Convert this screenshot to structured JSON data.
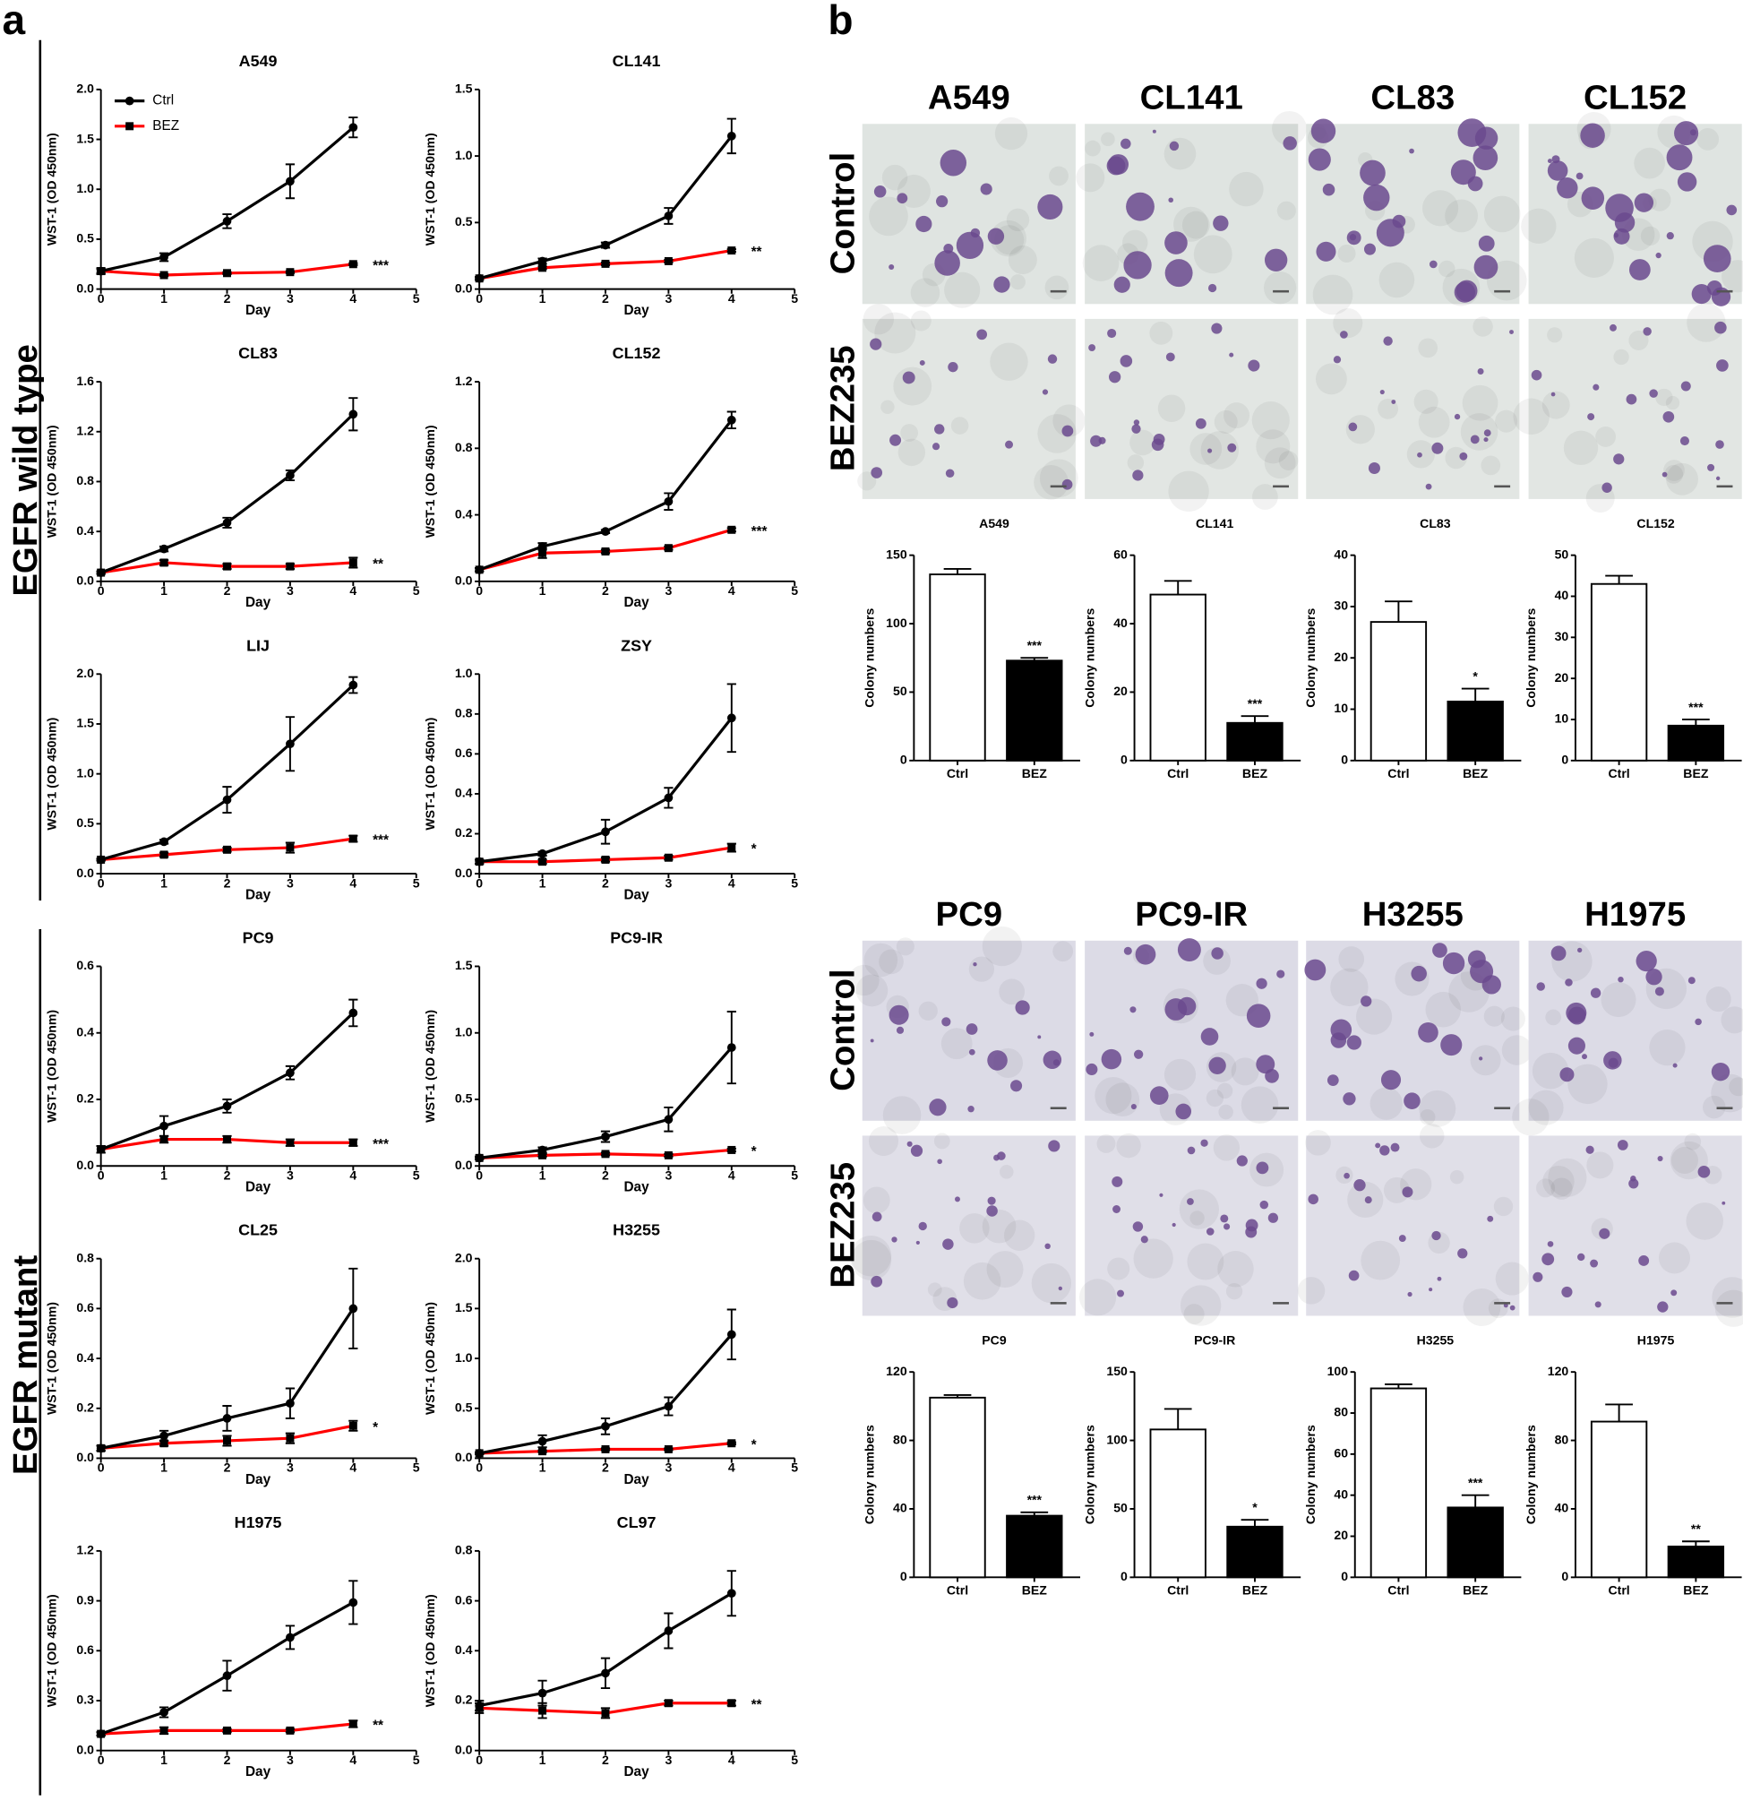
{
  "panel_a": {
    "label": "a",
    "groups": [
      "EGFR wild type",
      "EGFR mutant"
    ]
  },
  "panel_b": {
    "label": "b",
    "row_labels": [
      "Control",
      "BEZ235"
    ],
    "image_titles": [
      [
        "A549",
        "CL141",
        "CL83",
        "CL152"
      ],
      [
        "PC9",
        "PC9-IR",
        "H3255",
        "H1975"
      ]
    ]
  },
  "chart_data": [
    {
      "type": "line",
      "title": "A549",
      "xlabel": "Day",
      "ylabel": "WST-1 (OD 450nm)",
      "x": [
        0,
        1,
        2,
        3,
        4
      ],
      "xlim": [
        0,
        5
      ],
      "xticks": [
        0,
        1,
        2,
        3,
        4,
        5
      ],
      "ylim": [
        0,
        2
      ],
      "yticks": [
        {
          "value": 0,
          "label": "0.0"
        },
        0.5,
        {
          "value": 1,
          "label": "1.0"
        },
        1.5,
        {
          "value": 2,
          "label": "2.0"
        }
      ],
      "annotation": "***",
      "series": [
        {
          "name": "Ctrl",
          "color": "#000000",
          "marker": "circle",
          "values": [
            0.18,
            0.32,
            0.68,
            1.08,
            1.62
          ],
          "errors": [
            0.03,
            0.04,
            0.07,
            0.17,
            0.1
          ]
        },
        {
          "name": "BEZ",
          "color": "#ff0000",
          "marker": "square",
          "values": [
            0.18,
            0.14,
            0.16,
            0.17,
            0.25
          ],
          "errors": [
            0.02,
            0.01,
            0.01,
            0.01,
            0.01
          ]
        }
      ]
    },
    {
      "type": "line",
      "title": "CL141",
      "xlabel": "Day",
      "ylabel": "WST-1 (OD 450nm)",
      "x": [
        0,
        1,
        2,
        3,
        4
      ],
      "xlim": [
        0,
        5
      ],
      "xticks": [
        0,
        1,
        2,
        3,
        4,
        5
      ],
      "ylim": [
        0,
        1.5
      ],
      "yticks": [
        {
          "value": 0,
          "label": "0.0"
        },
        0.5,
        {
          "value": 1,
          "label": "1.0"
        },
        1.5
      ],
      "annotation": "**",
      "series": [
        {
          "color": "#000000",
          "marker": "circle",
          "values": [
            0.08,
            0.21,
            0.33,
            0.55,
            1.15
          ],
          "errors": [
            0.01,
            0.02,
            0.02,
            0.06,
            0.13
          ]
        },
        {
          "color": "#ff0000",
          "marker": "square",
          "values": [
            0.08,
            0.16,
            0.19,
            0.21,
            0.29
          ],
          "errors": [
            0.01,
            0.01,
            0.01,
            0.01,
            0.01
          ]
        }
      ]
    },
    {
      "type": "line",
      "title": "CL83",
      "xlabel": "Day",
      "ylabel": "WST-1 (OD 450nm)",
      "x": [
        0,
        1,
        2,
        3,
        4
      ],
      "xlim": [
        0,
        5
      ],
      "xticks": [
        0,
        1,
        2,
        3,
        4,
        5
      ],
      "ylim": [
        0,
        1.6
      ],
      "yticks": [
        {
          "value": 0,
          "label": "0.0"
        },
        0.4,
        0.8,
        1.2,
        1.6
      ],
      "annotation": "**",
      "series": [
        {
          "color": "#000000",
          "marker": "circle",
          "values": [
            0.07,
            0.26,
            0.47,
            0.85,
            1.34
          ],
          "errors": [
            0.01,
            0.02,
            0.04,
            0.04,
            0.13
          ]
        },
        {
          "color": "#ff0000",
          "marker": "square",
          "values": [
            0.07,
            0.15,
            0.12,
            0.12,
            0.15
          ],
          "errors": [
            0.01,
            0.02,
            0.02,
            0.02,
            0.04
          ]
        }
      ]
    },
    {
      "type": "line",
      "title": "CL152",
      "xlabel": "Day",
      "ylabel": "WST-1 (OD 450nm)",
      "x": [
        0,
        1,
        2,
        3,
        4
      ],
      "xlim": [
        0,
        5
      ],
      "xticks": [
        0,
        1,
        2,
        3,
        4,
        5
      ],
      "ylim": [
        0,
        1.2
      ],
      "yticks": [
        {
          "value": 0,
          "label": "0.0"
        },
        0.4,
        0.8,
        1.2
      ],
      "annotation": "***",
      "series": [
        {
          "color": "#000000",
          "marker": "circle",
          "values": [
            0.07,
            0.21,
            0.3,
            0.48,
            0.97
          ],
          "errors": [
            0.01,
            0.02,
            0.01,
            0.05,
            0.05
          ]
        },
        {
          "color": "#ff0000",
          "marker": "square",
          "values": [
            0.07,
            0.17,
            0.18,
            0.2,
            0.31
          ],
          "errors": [
            0.01,
            0.03,
            0.01,
            0.01,
            0.01
          ]
        }
      ]
    },
    {
      "type": "line",
      "title": "LIJ",
      "xlabel": "Day",
      "ylabel": "WST-1 (OD 450nm)",
      "x": [
        0,
        1,
        2,
        3,
        4
      ],
      "xlim": [
        0,
        5
      ],
      "xticks": [
        0,
        1,
        2,
        3,
        4,
        5
      ],
      "ylim": [
        0,
        2
      ],
      "yticks": [
        {
          "value": 0,
          "label": "0.0"
        },
        0.5,
        {
          "value": 1,
          "label": "1.0"
        },
        1.5,
        {
          "value": 2,
          "label": "2.0"
        }
      ],
      "annotation": "***",
      "series": [
        {
          "color": "#000000",
          "marker": "circle",
          "values": [
            0.14,
            0.32,
            0.74,
            1.3,
            1.89
          ],
          "errors": [
            0.01,
            0.02,
            0.13,
            0.27,
            0.08
          ]
        },
        {
          "color": "#ff0000",
          "marker": "square",
          "values": [
            0.14,
            0.19,
            0.24,
            0.26,
            0.35
          ],
          "errors": [
            0.01,
            0.02,
            0.02,
            0.05,
            0.03
          ]
        }
      ]
    },
    {
      "type": "line",
      "title": "ZSY",
      "xlabel": "Day",
      "ylabel": "WST-1 (OD 450nm)",
      "x": [
        0,
        1,
        2,
        3,
        4
      ],
      "xlim": [
        0,
        5
      ],
      "xticks": [
        0,
        1,
        2,
        3,
        4,
        5
      ],
      "ylim": [
        0,
        1
      ],
      "yticks": [
        {
          "value": 0,
          "label": "0.0"
        },
        0.2,
        0.4,
        0.6,
        0.8,
        {
          "value": 1,
          "label": "1.0"
        }
      ],
      "annotation": "*",
      "series": [
        {
          "color": "#000000",
          "marker": "circle",
          "values": [
            0.06,
            0.1,
            0.21,
            0.38,
            0.78
          ],
          "errors": [
            0.01,
            0.01,
            0.06,
            0.05,
            0.17
          ]
        },
        {
          "color": "#ff0000",
          "marker": "square",
          "values": [
            0.06,
            0.06,
            0.07,
            0.08,
            0.13
          ],
          "errors": [
            0.01,
            0.01,
            0.01,
            0.01,
            0.02
          ]
        }
      ]
    },
    {
      "type": "line",
      "title": "PC9",
      "xlabel": "Day",
      "ylabel": "WST-1 (OD 450nm)",
      "x": [
        0,
        1,
        2,
        3,
        4
      ],
      "xlim": [
        0,
        5
      ],
      "xticks": [
        0,
        1,
        2,
        3,
        4,
        5
      ],
      "ylim": [
        0,
        0.6
      ],
      "yticks": [
        {
          "value": 0,
          "label": "0.0"
        },
        0.2,
        0.4,
        0.6
      ],
      "annotation": "***",
      "series": [
        {
          "color": "#000000",
          "marker": "circle",
          "values": [
            0.05,
            0.12,
            0.18,
            0.28,
            0.46
          ],
          "errors": [
            0.01,
            0.03,
            0.02,
            0.02,
            0.04
          ]
        },
        {
          "color": "#ff0000",
          "marker": "square",
          "values": [
            0.05,
            0.08,
            0.08,
            0.07,
            0.07
          ],
          "errors": [
            0.01,
            0.01,
            0.01,
            0.01,
            0.01
          ]
        }
      ]
    },
    {
      "type": "line",
      "title": "PC9-IR",
      "xlabel": "Day",
      "ylabel": "WST-1 (OD 450nm)",
      "x": [
        0,
        1,
        2,
        3,
        4
      ],
      "xlim": [
        0,
        5
      ],
      "xticks": [
        0,
        1,
        2,
        3,
        4,
        5
      ],
      "ylim": [
        0,
        1.5
      ],
      "yticks": [
        {
          "value": 0,
          "label": "0.0"
        },
        0.5,
        {
          "value": 1,
          "label": "1.0"
        },
        1.5
      ],
      "annotation": "*",
      "series": [
        {
          "color": "#000000",
          "marker": "circle",
          "values": [
            0.06,
            0.12,
            0.22,
            0.35,
            0.89
          ],
          "errors": [
            0.01,
            0.02,
            0.04,
            0.09,
            0.27
          ]
        },
        {
          "color": "#ff0000",
          "marker": "square",
          "values": [
            0.06,
            0.08,
            0.09,
            0.08,
            0.12
          ],
          "errors": [
            0.01,
            0.01,
            0.01,
            0.01,
            0.01
          ]
        }
      ]
    },
    {
      "type": "line",
      "title": "CL25",
      "xlabel": "Day",
      "ylabel": "WST-1 (OD 450nm)",
      "x": [
        0,
        1,
        2,
        3,
        4
      ],
      "xlim": [
        0,
        5
      ],
      "xticks": [
        0,
        1,
        2,
        3,
        4,
        5
      ],
      "ylim": [
        0,
        0.8
      ],
      "yticks": [
        {
          "value": 0,
          "label": "0.0"
        },
        0.2,
        0.4,
        0.6,
        0.8
      ],
      "annotation": "*",
      "series": [
        {
          "color": "#000000",
          "marker": "circle",
          "values": [
            0.04,
            0.09,
            0.16,
            0.22,
            0.6
          ],
          "errors": [
            0.01,
            0.02,
            0.05,
            0.06,
            0.16
          ]
        },
        {
          "color": "#ff0000",
          "marker": "square",
          "values": [
            0.04,
            0.06,
            0.07,
            0.08,
            0.13
          ],
          "errors": [
            0.01,
            0.01,
            0.02,
            0.02,
            0.02
          ]
        }
      ]
    },
    {
      "type": "line",
      "title": "H3255",
      "xlabel": "Day",
      "ylabel": "WST-1 (OD 450nm)",
      "x": [
        0,
        1,
        2,
        3,
        4
      ],
      "xlim": [
        0,
        5
      ],
      "xticks": [
        0,
        1,
        2,
        3,
        4,
        5
      ],
      "ylim": [
        0,
        2
      ],
      "yticks": [
        {
          "value": 0,
          "label": "0.0"
        },
        0.5,
        {
          "value": 1,
          "label": "1.0"
        },
        1.5,
        {
          "value": 2,
          "label": "2.0"
        }
      ],
      "annotation": "*",
      "series": [
        {
          "color": "#000000",
          "marker": "circle",
          "values": [
            0.05,
            0.17,
            0.32,
            0.52,
            1.24
          ],
          "errors": [
            0.01,
            0.06,
            0.08,
            0.09,
            0.25
          ]
        },
        {
          "color": "#ff0000",
          "marker": "square",
          "values": [
            0.05,
            0.07,
            0.09,
            0.09,
            0.15
          ],
          "errors": [
            0.01,
            0.01,
            0.01,
            0.01,
            0.01
          ]
        }
      ]
    },
    {
      "type": "line",
      "title": "H1975",
      "xlabel": "Day",
      "ylabel": "WST-1 (OD 450nm)",
      "x": [
        0,
        1,
        2,
        3,
        4
      ],
      "xlim": [
        0,
        5
      ],
      "xticks": [
        0,
        1,
        2,
        3,
        4,
        5
      ],
      "ylim": [
        0,
        1.2
      ],
      "yticks": [
        {
          "value": 0,
          "label": "0.0"
        },
        0.3,
        0.6,
        0.9,
        1.2
      ],
      "annotation": "**",
      "series": [
        {
          "color": "#000000",
          "marker": "circle",
          "values": [
            0.1,
            0.23,
            0.45,
            0.68,
            0.89
          ],
          "errors": [
            0.01,
            0.03,
            0.09,
            0.07,
            0.13
          ]
        },
        {
          "color": "#ff0000",
          "marker": "square",
          "values": [
            0.1,
            0.12,
            0.12,
            0.12,
            0.16
          ],
          "errors": [
            0.01,
            0.02,
            0.01,
            0.01,
            0.02
          ]
        }
      ]
    },
    {
      "type": "line",
      "title": "CL97",
      "xlabel": "Day",
      "ylabel": "WST-1 (OD 450nm)",
      "x": [
        0,
        1,
        2,
        3,
        4
      ],
      "xlim": [
        0,
        5
      ],
      "xticks": [
        0,
        1,
        2,
        3,
        4,
        5
      ],
      "ylim": [
        0,
        0.8
      ],
      "yticks": [
        {
          "value": 0,
          "label": "0.0"
        },
        0.2,
        0.4,
        0.6,
        0.8
      ],
      "annotation": "**",
      "series": [
        {
          "color": "#000000",
          "marker": "circle",
          "values": [
            0.18,
            0.23,
            0.31,
            0.48,
            0.63
          ],
          "errors": [
            0.02,
            0.05,
            0.06,
            0.07,
            0.09
          ]
        },
        {
          "color": "#ff0000",
          "marker": "square",
          "values": [
            0.17,
            0.16,
            0.15,
            0.19,
            0.19
          ],
          "errors": [
            0.02,
            0.03,
            0.02,
            0.01,
            0.01
          ]
        }
      ]
    },
    {
      "type": "bar",
      "title": "A549",
      "ylabel": "Colony numbers",
      "categories": [
        "Ctrl",
        "BEZ"
      ],
      "values": [
        136,
        73
      ],
      "errors": [
        4,
        2
      ],
      "colors": [
        "#ffffff",
        "#000000"
      ],
      "ylim": [
        0,
        150
      ],
      "yticks": [
        0,
        50,
        100,
        150
      ],
      "annotation": "***"
    },
    {
      "type": "bar",
      "title": "CL141",
      "ylabel": "Colony numbers",
      "categories": [
        "Ctrl",
        "BEZ"
      ],
      "values": [
        48.5,
        11
      ],
      "errors": [
        4,
        2
      ],
      "colors": [
        "#ffffff",
        "#000000"
      ],
      "ylim": [
        0,
        60
      ],
      "yticks": [
        0,
        20,
        40,
        60
      ],
      "annotation": "***"
    },
    {
      "type": "bar",
      "title": "CL83",
      "ylabel": "Colony numbers",
      "categories": [
        "Ctrl",
        "BEZ"
      ],
      "values": [
        27,
        11.5
      ],
      "errors": [
        4,
        2.5
      ],
      "colors": [
        "#ffffff",
        "#000000"
      ],
      "ylim": [
        0,
        40
      ],
      "yticks": [
        0,
        10,
        20,
        30,
        40
      ],
      "annotation": "*"
    },
    {
      "type": "bar",
      "title": "CL152",
      "ylabel": "Colony numbers",
      "categories": [
        "Ctrl",
        "BEZ"
      ],
      "values": [
        43,
        8.5
      ],
      "errors": [
        2,
        1.5
      ],
      "colors": [
        "#ffffff",
        "#000000"
      ],
      "ylim": [
        0,
        50
      ],
      "yticks": [
        0,
        10,
        20,
        30,
        40,
        50
      ],
      "annotation": "***"
    },
    {
      "type": "bar",
      "title": "PC9",
      "ylabel": "Colony numbers",
      "categories": [
        "Ctrl",
        "BEZ"
      ],
      "values": [
        105,
        36
      ],
      "errors": [
        1.5,
        2
      ],
      "colors": [
        "#ffffff",
        "#000000"
      ],
      "ylim": [
        0,
        120
      ],
      "yticks": [
        0,
        40,
        80,
        120
      ],
      "annotation": "***"
    },
    {
      "type": "bar",
      "title": "PC9-IR",
      "ylabel": "Colony numbers",
      "categories": [
        "Ctrl",
        "BEZ"
      ],
      "values": [
        108,
        37
      ],
      "errors": [
        15,
        5
      ],
      "colors": [
        "#ffffff",
        "#000000"
      ],
      "ylim": [
        0,
        150
      ],
      "yticks": [
        0,
        50,
        100,
        150
      ],
      "annotation": "*"
    },
    {
      "type": "bar",
      "title": "H3255",
      "ylabel": "Colony numbers",
      "categories": [
        "Ctrl",
        "BEZ"
      ],
      "values": [
        92,
        34
      ],
      "errors": [
        2,
        6
      ],
      "colors": [
        "#ffffff",
        "#000000"
      ],
      "ylim": [
        0,
        100
      ],
      "yticks": [
        0,
        20,
        40,
        60,
        80,
        100
      ],
      "annotation": "***"
    },
    {
      "type": "bar",
      "title": "H1975",
      "ylabel": "Colony numbers",
      "categories": [
        "Ctrl",
        "BEZ"
      ],
      "values": [
        91,
        18
      ],
      "errors": [
        10,
        3
      ],
      "colors": [
        "#ffffff",
        "#000000"
      ],
      "ylim": [
        0,
        120
      ],
      "yticks": [
        0,
        40,
        80,
        120
      ],
      "annotation": "**"
    }
  ]
}
